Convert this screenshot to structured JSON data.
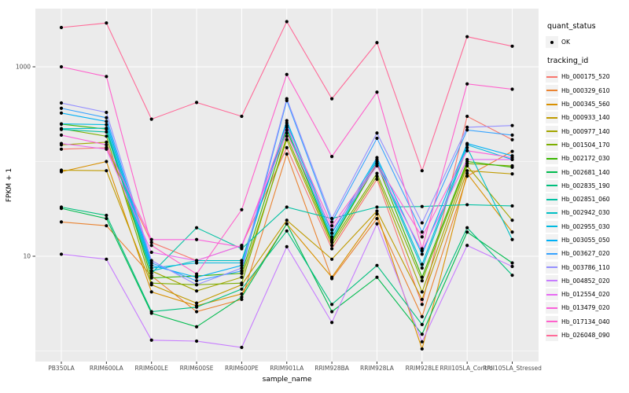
{
  "axes": {
    "x_title": "sample_name",
    "y_title": "FPKM + 1"
  },
  "legend": {
    "quant_status_title": "quant_status",
    "quant_status_items": [
      "OK"
    ],
    "tracking_title": "tracking_id"
  },
  "colors": {
    "panel_bg": "#EBEBEB",
    "grid": "#FFFFFF",
    "tick_text": "#4D4D4D",
    "axis_title_text": "#000000",
    "point": "#000000",
    "legend_key_bg": "#F2F2F2"
  },
  "chart_data": {
    "type": "line",
    "title": "",
    "xlabel": "sample_name",
    "ylabel": "FPKM + 1",
    "x_scale": "discrete",
    "y_scale": "log10",
    "y_major_ticks": [
      10,
      1000
    ],
    "y_minor_ticks": [
      1,
      100
    ],
    "ylim": [
      0.8,
      4100
    ],
    "grid": true,
    "legend_position": "right",
    "marker": "black-point",
    "categories": [
      "PB350LA",
      "RRIM600LA",
      "RRIM600LE",
      "RRIM600SE",
      "RRIM600PE",
      "RRIM901LA",
      "RRIM928BA",
      "RRIM928LA",
      "RRIM928LE",
      "RRII105LA_Control",
      "RRII105LA_Stressed"
    ],
    "series": [
      {
        "name": "Hb_000175_520",
        "color": "#F8766D",
        "values": [
          135,
          140,
          14,
          9,
          13,
          140,
          12,
          65,
          3.1,
          300,
          170
        ]
      },
      {
        "name": "Hb_000329_610",
        "color": "#EA8331",
        "values": [
          23,
          21,
          6.2,
          2.6,
          3.5,
          120,
          5.8,
          25,
          2.3,
          70,
          128
        ]
      },
      {
        "name": "Hb_000345_560",
        "color": "#D89000",
        "values": [
          78,
          100,
          4.2,
          3.0,
          4.0,
          22,
          6.0,
          28,
          1.05,
          75,
          18
        ]
      },
      {
        "name": "Hb_000933_140",
        "color": "#C09B00",
        "values": [
          81,
          80,
          5.0,
          3.2,
          5.0,
          24,
          9.3,
          30,
          3.5,
          80,
          74
        ]
      },
      {
        "name": "Hb_000977_140",
        "color": "#A3A500",
        "values": [
          150,
          160,
          7.0,
          4.3,
          6.0,
          170,
          13,
          70,
          4.2,
          90,
          24
        ]
      },
      {
        "name": "Hb_001504_170",
        "color": "#7CAE00",
        "values": [
          222,
          185,
          5.2,
          5.0,
          5.2,
          185,
          14,
          75,
          5.5,
          95,
          90
        ]
      },
      {
        "name": "Hb_002172_030",
        "color": "#39B600",
        "values": [
          248,
          220,
          5.9,
          6.2,
          6.6,
          215,
          14.5,
          95,
          6.0,
          100,
          87
        ]
      },
      {
        "name": "Hb_002681_140",
        "color": "#00BB4E",
        "values": [
          32,
          25,
          2.5,
          1.8,
          3.7,
          22,
          2.6,
          6,
          1.5,
          18,
          8.5
        ]
      },
      {
        "name": "Hb_002835_190",
        "color": "#00BF7D",
        "values": [
          33,
          27,
          2.6,
          2.9,
          4.5,
          18.5,
          3.1,
          8,
          1.9,
          20,
          6.3
        ]
      },
      {
        "name": "Hb_002851_060",
        "color": "#00C1A3",
        "values": [
          218,
          205,
          6.6,
          20,
          12,
          33,
          25,
          33,
          33.5,
          35,
          34
        ]
      },
      {
        "name": "Hb_002942_030",
        "color": "#00BFC4",
        "values": [
          222,
          225,
          7.0,
          9.0,
          9.0,
          230,
          15,
          100,
          7.5,
          140,
          15
        ]
      },
      {
        "name": "Hb_002955_030",
        "color": "#00BAE0",
        "values": [
          250,
          245,
          7.5,
          8.5,
          8.5,
          255,
          16,
          105,
          8.2,
          150,
          105
        ]
      },
      {
        "name": "Hb_003055_050",
        "color": "#00B0F6",
        "values": [
          325,
          265,
          8.0,
          6.0,
          8.0,
          270,
          17.5,
          110,
          10.5,
          155,
          115
        ]
      },
      {
        "name": "Hb_003627_020",
        "color": "#35A2FF",
        "values": [
          365,
          290,
          8.5,
          5.5,
          7.0,
          440,
          23,
          176,
          18,
          215,
          190
        ]
      },
      {
        "name": "Hb_003786_110",
        "color": "#9590FF",
        "values": [
          415,
          330,
          9.0,
          5.0,
          7.5,
          460,
          25,
          200,
          22.5,
          230,
          240
        ]
      },
      {
        "name": "Hb_004852_020",
        "color": "#C77CFF",
        "values": [
          10.5,
          9.3,
          1.3,
          1.27,
          1.09,
          12.6,
          2.0,
          22,
          1.25,
          13,
          7.8
        ]
      },
      {
        "name": "Hb_012554_020",
        "color": "#E76BF3",
        "values": [
          155,
          135,
          11,
          9,
          13,
          200,
          19,
          90,
          11.4,
          105,
          105
        ]
      },
      {
        "name": "Hb_013479_020",
        "color": "#FA62DB",
        "values": [
          190,
          150,
          15,
          15,
          12.5,
          240,
          21,
          95,
          16,
          130,
          110
        ]
      },
      {
        "name": "Hb_017134_040",
        "color": "#FF61CC",
        "values": [
          1000,
          790,
          13,
          6.5,
          31,
          830,
          113,
          540,
          12,
          660,
          580
        ]
      },
      {
        "name": "Hb_026048_090",
        "color": "#FF6A98",
        "values": [
          2600,
          2900,
          280,
          420,
          300,
          3000,
          460,
          1800,
          80,
          2080,
          1650
        ]
      }
    ]
  }
}
